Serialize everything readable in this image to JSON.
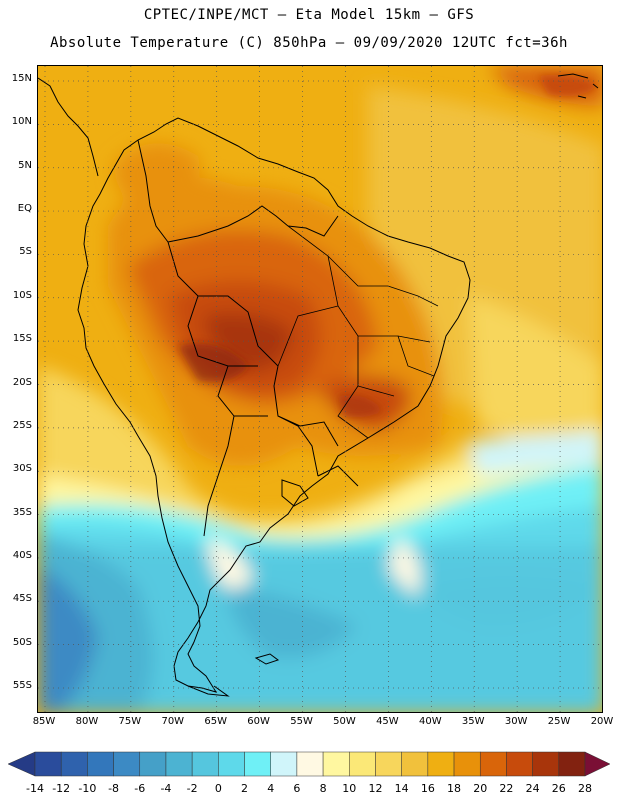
{
  "header": {
    "line1": "CPTEC/INPE/MCT –  Eta Model 15km – GFS",
    "line2": "Absolute Temperature (C) 850hPa – 09/09/2020 12UTC fct=36h"
  },
  "axes": {
    "lat_labels": [
      "15N",
      "10N",
      "5N",
      "EQ",
      "5S",
      "10S",
      "15S",
      "20S",
      "25S",
      "30S",
      "35S",
      "40S",
      "45S",
      "50S",
      "55S"
    ],
    "lon_labels": [
      "85W",
      "80W",
      "75W",
      "70W",
      "65W",
      "60W",
      "55W",
      "50W",
      "45W",
      "40W",
      "35W",
      "30W",
      "25W",
      "20W"
    ],
    "lat_values": [
      15,
      10,
      5,
      0,
      -5,
      -10,
      -15,
      -20,
      -25,
      -30,
      -35,
      -40,
      -45,
      -50,
      -55
    ],
    "lon_values": [
      -85,
      -80,
      -75,
      -70,
      -65,
      -60,
      -55,
      -50,
      -45,
      -40,
      -35,
      -30,
      -25,
      -20
    ]
  },
  "colorbar": {
    "labels": [
      "-14",
      "-12",
      "-10",
      "-8",
      "-6",
      "-4",
      "-2",
      "0",
      "2",
      "4",
      "6",
      "8",
      "10",
      "12",
      "14",
      "16",
      "18",
      "20",
      "22",
      "24",
      "26",
      "28"
    ],
    "colors": [
      "#2a4c9c",
      "#2f62ad",
      "#3377bb",
      "#3c8ac4",
      "#45a0c8",
      "#4cb3d2",
      "#55c6de",
      "#5ed9ea",
      "#6ff0f6",
      "#d0f5fa",
      "#fff9e3",
      "#fff7a0",
      "#fbe877",
      "#f7d65c",
      "#f1c13c",
      "#efaf12",
      "#e8910a",
      "#d9650a",
      "#c74b0c",
      "#a8350b",
      "#822210"
    ],
    "under_color": "#253b86",
    "over_color": "#7a0f35"
  }
}
